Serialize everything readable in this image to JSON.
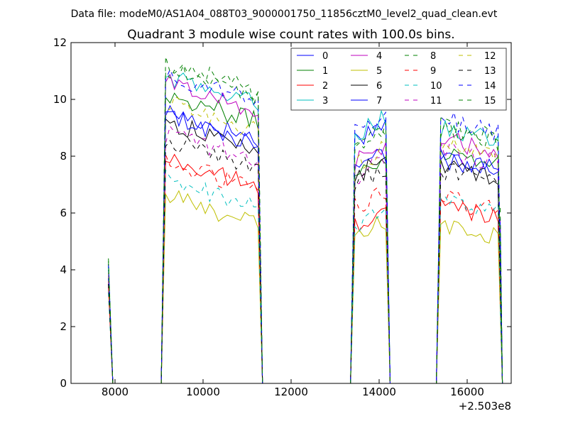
{
  "chart_data": {
    "type": "line",
    "suptitle": "Data file: modeM0/AS1A04_088T03_9000001750_11856cztM0_level2_quad_clean.evt",
    "title": "Quadrant 3 module wise count rates with 100.0s bins.",
    "xlabel": "",
    "ylabel": "",
    "x_offset_label": "+2.503e8",
    "xlim": [
      7000,
      17000
    ],
    "ylim": [
      0,
      12
    ],
    "x_ticks": [
      8000,
      10000,
      12000,
      14000,
      16000
    ],
    "y_ticks": [
      0,
      2,
      4,
      6,
      8,
      10,
      12
    ],
    "grid": false,
    "legend_position": "top-right",
    "legend_columns": 4,
    "segments": [
      {
        "start": 9150,
        "end": 11250
      },
      {
        "start": 13450,
        "end": 14150
      },
      {
        "start": 15400,
        "end": 16700
      }
    ],
    "pre_spike": {
      "x": 7850
    },
    "series": [
      {
        "name": "0",
        "color": "#0000ff",
        "dashed": false,
        "levels": [
          9.0,
          8.9,
          7.7
        ],
        "spike": 4.0
      },
      {
        "name": "1",
        "color": "#008000",
        "dashed": false,
        "levels": [
          9.6,
          7.7,
          7.9
        ],
        "spike": 4.2
      },
      {
        "name": "2",
        "color": "#ff0000",
        "dashed": false,
        "levels": [
          7.3,
          5.8,
          6.0
        ],
        "spike": 3.6
      },
      {
        "name": "3",
        "color": "#00bfbf",
        "dashed": false,
        "levels": [
          10.2,
          9.1,
          8.7
        ],
        "spike": 4.1
      },
      {
        "name": "4",
        "color": "#bf00bf",
        "dashed": false,
        "levels": [
          10.0,
          8.1,
          8.3
        ],
        "spike": 3.8
      },
      {
        "name": "5",
        "color": "#bfbf00",
        "dashed": false,
        "levels": [
          6.0,
          5.4,
          5.3
        ],
        "spike": 3.3
      },
      {
        "name": "6",
        "color": "#000000",
        "dashed": false,
        "levels": [
          8.6,
          7.6,
          7.4
        ],
        "spike": 3.5
      },
      {
        "name": "7",
        "color": "#0000ff",
        "dashed": false,
        "levels": [
          8.8,
          7.8,
          7.6
        ],
        "spike": 3.7
      },
      {
        "name": "8",
        "color": "#008000",
        "dashed": true,
        "levels": [
          10.7,
          8.8,
          8.6
        ],
        "spike": 4.4
      },
      {
        "name": "9",
        "color": "#ff0000",
        "dashed": true,
        "levels": [
          7.2,
          6.5,
          6.2
        ],
        "spike": 3.4
      },
      {
        "name": "10",
        "color": "#00bfbf",
        "dashed": true,
        "levels": [
          6.6,
          5.8,
          6.1
        ],
        "spike": 3.2
      },
      {
        "name": "11",
        "color": "#bf00bf",
        "dashed": true,
        "levels": [
          8.2,
          7.6,
          7.9
        ],
        "spike": 3.6
      },
      {
        "name": "12",
        "color": "#bfbf00",
        "dashed": true,
        "levels": [
          9.3,
          8.0,
          8.1
        ],
        "spike": 3.9
      },
      {
        "name": "13",
        "color": "#000000",
        "dashed": true,
        "levels": [
          8.0,
          7.3,
          7.2
        ],
        "spike": 3.5
      },
      {
        "name": "14",
        "color": "#0000ff",
        "dashed": true,
        "levels": [
          10.3,
          9.2,
          9.0
        ],
        "spike": 4.2
      },
      {
        "name": "15",
        "color": "#008000",
        "dashed": true,
        "levels": [
          10.5,
          8.7,
          8.8
        ],
        "spike": 4.3
      }
    ]
  }
}
